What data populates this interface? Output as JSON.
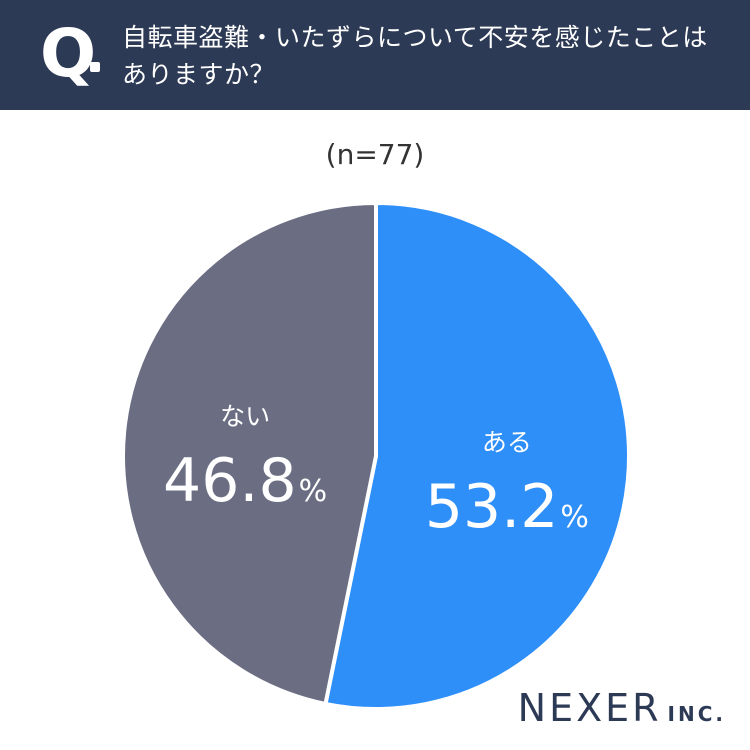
{
  "header": {
    "q_mark": "Q",
    "question": "自転車盗難・いたずらについて不安を感じたことはありますか？"
  },
  "chart_data": {
    "type": "pie",
    "subtitle": "(n=77)",
    "series": [
      {
        "label": "ある",
        "value": 53.2,
        "display": "53.2",
        "unit": "%",
        "color": "#2e8ff8"
      },
      {
        "label": "ない",
        "value": 46.8,
        "display": "46.8",
        "unit": "%",
        "color": "#6b6e83"
      }
    ],
    "start": "12 o'clock",
    "direction": "clockwise"
  },
  "logo": {
    "main": "NEXER",
    "sub": "INC."
  }
}
